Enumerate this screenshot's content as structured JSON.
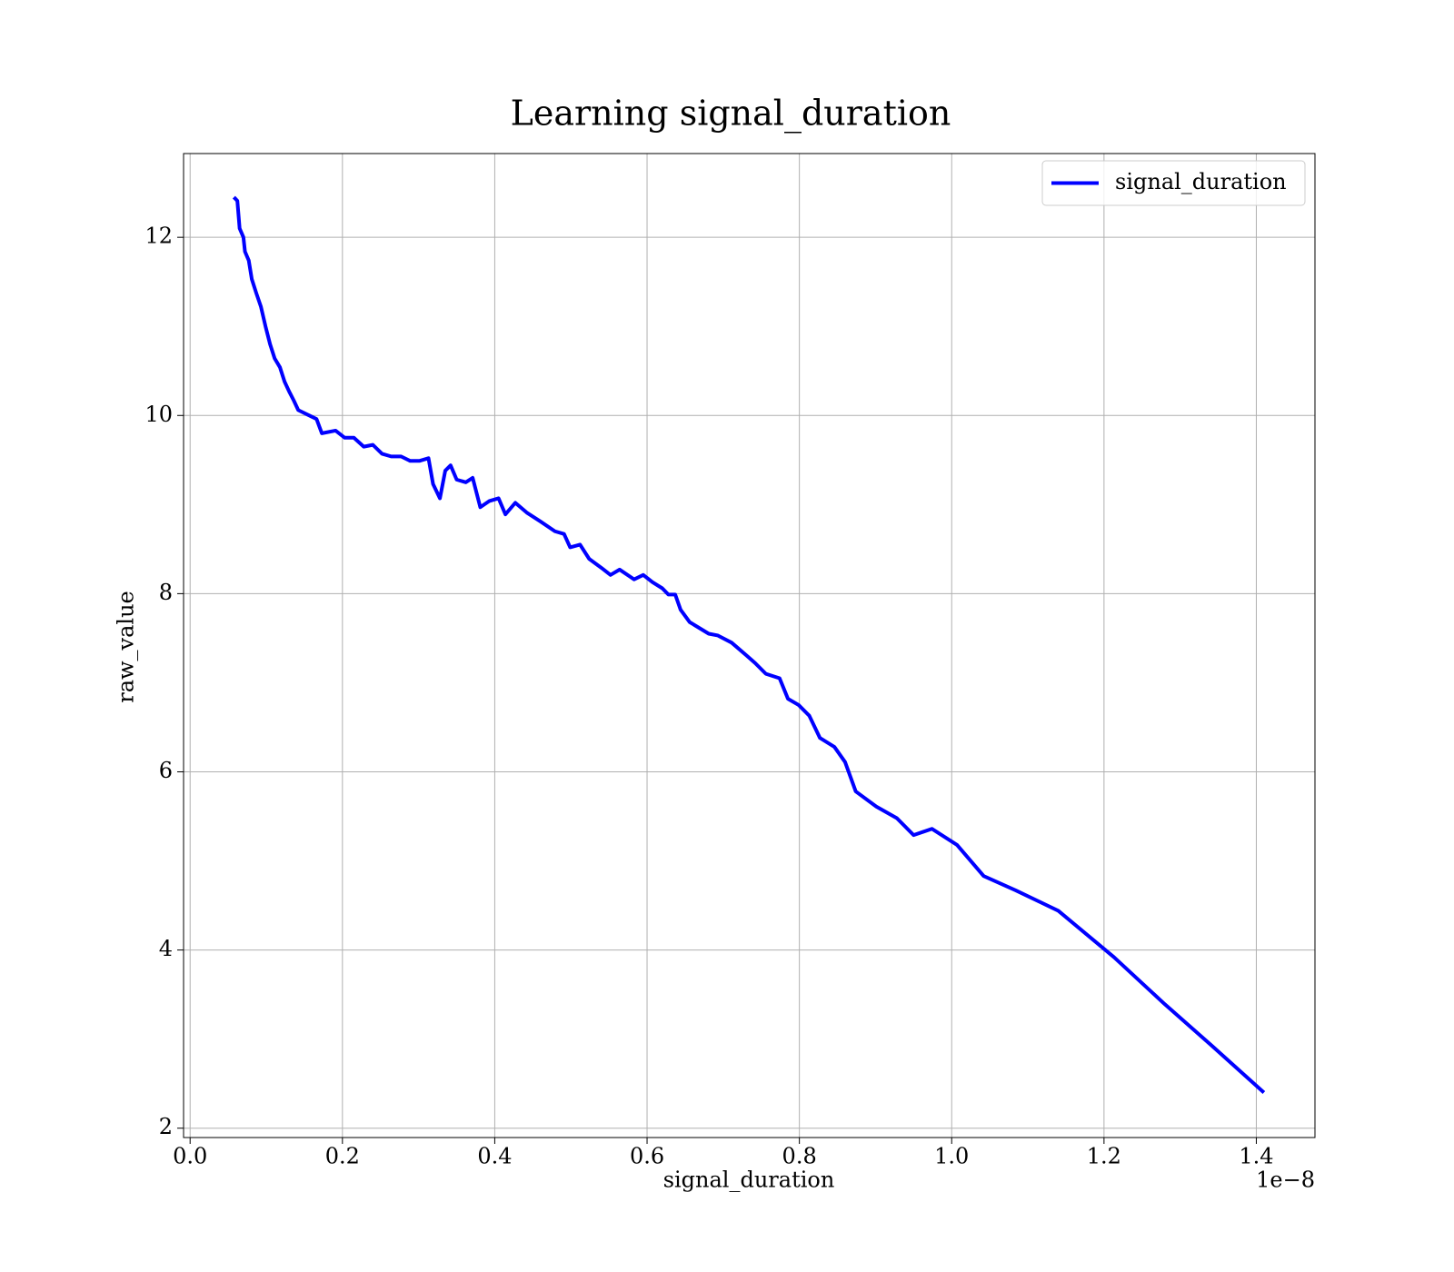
{
  "chart_data": {
    "type": "line",
    "title": "Learning signal_duration",
    "xlabel": "signal_duration",
    "ylabel": "raw_value",
    "x_offset_label": "1e−8",
    "x": [
      0.0575,
      0.062,
      0.065,
      0.07,
      0.072,
      0.077,
      0.081,
      0.087,
      0.093,
      0.099,
      0.105,
      0.111,
      0.118,
      0.124,
      0.13,
      0.136,
      0.142,
      0.154,
      0.166,
      0.173,
      0.191,
      0.203,
      0.215,
      0.228,
      0.24,
      0.252,
      0.264,
      0.277,
      0.289,
      0.301,
      0.313,
      0.319,
      0.328,
      0.335,
      0.342,
      0.35,
      0.362,
      0.371,
      0.381,
      0.393,
      0.405,
      0.414,
      0.427,
      0.442,
      0.46,
      0.479,
      0.491,
      0.499,
      0.512,
      0.524,
      0.54,
      0.552,
      0.564,
      0.583,
      0.595,
      0.607,
      0.62,
      0.628,
      0.637,
      0.644,
      0.656,
      0.681,
      0.693,
      0.711,
      0.73,
      0.742,
      0.756,
      0.774,
      0.785,
      0.799,
      0.813,
      0.827,
      0.846,
      0.86,
      0.874,
      0.901,
      0.928,
      0.95,
      0.974,
      1.007,
      1.042,
      1.084,
      1.14,
      1.213,
      1.28,
      1.341,
      1.41
    ],
    "series": [
      {
        "name": "signal_duration",
        "color": "#0000ff",
        "values": [
          12.45,
          12.41,
          12.1,
          12.0,
          11.84,
          11.74,
          11.53,
          11.37,
          11.22,
          11.0,
          10.8,
          10.64,
          10.54,
          10.38,
          10.27,
          10.17,
          10.06,
          10.01,
          9.96,
          9.8,
          9.83,
          9.75,
          9.75,
          9.65,
          9.67,
          9.57,
          9.54,
          9.54,
          9.49,
          9.49,
          9.52,
          9.23,
          9.07,
          9.38,
          9.44,
          9.28,
          9.25,
          9.3,
          8.97,
          9.04,
          9.07,
          8.89,
          9.02,
          8.91,
          8.81,
          8.7,
          8.67,
          8.52,
          8.55,
          8.39,
          8.29,
          8.21,
          8.27,
          8.16,
          8.21,
          8.13,
          8.06,
          7.99,
          7.99,
          7.82,
          7.68,
          7.55,
          7.53,
          7.45,
          7.31,
          7.22,
          7.1,
          7.05,
          6.82,
          6.75,
          6.63,
          6.38,
          6.28,
          6.11,
          5.78,
          5.61,
          5.48,
          5.29,
          5.36,
          5.18,
          4.83,
          4.67,
          4.44,
          3.92,
          3.39,
          2.93,
          2.4
        ]
      }
    ],
    "xlim": [
      -0.0086,
      1.477
    ],
    "ylim": [
      1.895,
      12.94
    ],
    "xticks": [
      {
        "value": 0,
        "label": "0.0"
      },
      0.2,
      0.4,
      0.6,
      0.8,
      {
        "value": 1,
        "label": "1.0"
      },
      1.2,
      1.4
    ],
    "yticks": [
      2,
      4,
      6,
      8,
      10,
      12
    ],
    "grid": true,
    "legend": "upper right"
  }
}
